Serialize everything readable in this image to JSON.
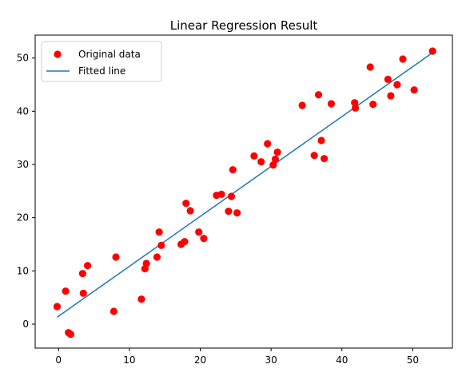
{
  "chart_data": {
    "type": "scatter",
    "title": "Linear Regression Result",
    "xlabel": "",
    "ylabel": "",
    "xlim": [
      -3.3,
      55.6
    ],
    "ylim": [
      -4.5,
      54.3
    ],
    "xticks": [
      0,
      10,
      20,
      30,
      40,
      50
    ],
    "yticks": [
      0,
      10,
      20,
      30,
      40,
      50
    ],
    "grid": false,
    "legend_position": "top-left",
    "legend": [
      "Original data",
      "Fitted line"
    ],
    "series": [
      {
        "name": "Original data",
        "type": "scatter",
        "color": "#ff0000",
        "points": [
          [
            -0.2,
            3.3
          ],
          [
            1.0,
            6.2
          ],
          [
            1.4,
            -1.6
          ],
          [
            1.7,
            -1.9
          ],
          [
            3.4,
            9.5
          ],
          [
            3.5,
            5.8
          ],
          [
            4.1,
            11.0
          ],
          [
            7.8,
            2.4
          ],
          [
            8.1,
            12.6
          ],
          [
            11.7,
            4.7
          ],
          [
            12.2,
            10.4
          ],
          [
            12.4,
            11.4
          ],
          [
            13.9,
            12.6
          ],
          [
            14.2,
            17.3
          ],
          [
            14.5,
            14.8
          ],
          [
            17.3,
            15.0
          ],
          [
            17.8,
            15.5
          ],
          [
            18.0,
            22.7
          ],
          [
            18.6,
            21.3
          ],
          [
            19.8,
            17.3
          ],
          [
            20.5,
            16.1
          ],
          [
            22.3,
            24.2
          ],
          [
            23.0,
            24.4
          ],
          [
            24.0,
            21.2
          ],
          [
            24.4,
            24.0
          ],
          [
            24.6,
            29.0
          ],
          [
            25.2,
            20.9
          ],
          [
            27.6,
            31.6
          ],
          [
            28.6,
            30.5
          ],
          [
            29.5,
            33.9
          ],
          [
            30.3,
            29.9
          ],
          [
            30.6,
            31.0
          ],
          [
            30.9,
            32.3
          ],
          [
            34.4,
            41.1
          ],
          [
            36.1,
            31.7
          ],
          [
            36.7,
            43.1
          ],
          [
            37.1,
            34.5
          ],
          [
            37.5,
            31.1
          ],
          [
            38.5,
            41.4
          ],
          [
            41.8,
            41.6
          ],
          [
            41.9,
            40.6
          ],
          [
            44.0,
            48.3
          ],
          [
            44.4,
            41.3
          ],
          [
            46.5,
            46.0
          ],
          [
            46.9,
            42.9
          ],
          [
            47.8,
            45.0
          ],
          [
            48.6,
            49.8
          ],
          [
            50.2,
            44.0
          ],
          [
            52.8,
            51.3
          ]
        ]
      },
      {
        "name": "Fitted line",
        "type": "line",
        "color": "#1f77b4",
        "points": [
          [
            -0.2,
            1.3
          ],
          [
            52.8,
            51.0
          ]
        ]
      }
    ]
  }
}
